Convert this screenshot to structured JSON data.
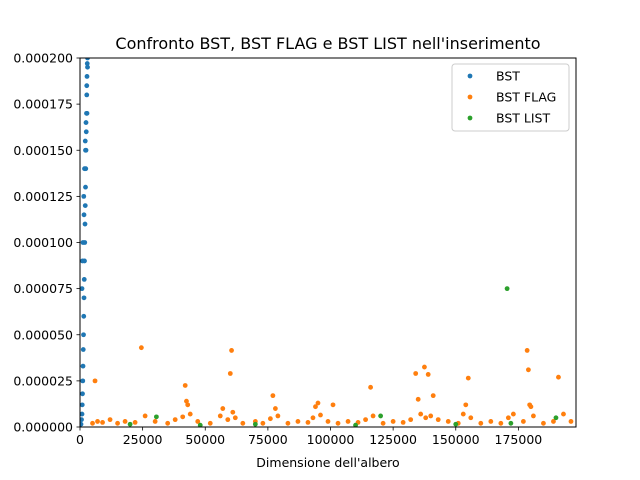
{
  "chart_data": {
    "type": "scatter",
    "title": "Confronto BST, BST FLAG e BST LIST nell'inserimento",
    "xlabel": "Dimensione dell'albero",
    "ylabel": "",
    "xlim": [
      0,
      198000
    ],
    "ylim": [
      0,
      0.0002
    ],
    "x_ticks": [
      {
        "value": 0,
        "label": "0"
      },
      {
        "value": 25000,
        "label": "25000"
      },
      {
        "value": 50000,
        "label": "50000"
      },
      {
        "value": 75000,
        "label": "75000"
      },
      {
        "value": 100000,
        "label": "100000"
      },
      {
        "value": 125000,
        "label": "125000"
      },
      {
        "value": 150000,
        "label": "150000"
      },
      {
        "value": 175000,
        "label": "175000"
      }
    ],
    "y_ticks": [
      {
        "value": 0,
        "label": "0.000000"
      },
      {
        "value": 2.5e-05,
        "label": "0.000025"
      },
      {
        "value": 5e-05,
        "label": "0.000050"
      },
      {
        "value": 7.5e-05,
        "label": "0.000075"
      },
      {
        "value": 0.0001,
        "label": "0.000100"
      },
      {
        "value": 0.000125,
        "label": "0.000125"
      },
      {
        "value": 0.00015,
        "label": "0.000150"
      },
      {
        "value": 0.000175,
        "label": "0.000175"
      },
      {
        "value": 0.0002,
        "label": "0.000200"
      }
    ],
    "grid": false,
    "legend_position": "top-right",
    "series": [
      {
        "name": "BST",
        "color": "#1f77b4",
        "x": [
          400,
          600,
          800,
          900,
          1000,
          1100,
          1200,
          1300,
          1400,
          1500,
          1600,
          1700,
          1800,
          1900,
          2000,
          2100,
          2200,
          2300,
          2400,
          2500,
          2600,
          2700,
          2800,
          2900,
          3000,
          800,
          1200,
          1500,
          1800,
          2100,
          2400,
          2700,
          3000,
          1000,
          1600,
          2200,
          2800
        ],
        "y": [
          1.5e-06,
          4e-06,
          7e-06,
          1.2e-05,
          1.8e-05,
          2.5e-05,
          3.3e-05,
          4.2e-05,
          5e-05,
          6e-05,
          7e-05,
          8e-05,
          9e-05,
          0.0001,
          0.00011,
          0.00012,
          0.00013,
          0.00014,
          0.00015,
          0.00016,
          0.00017,
          0.00018,
          0.00019,
          0.000197,
          0.0002,
          7.5e-05,
          0.0001,
          0.000125,
          0.00014,
          0.000155,
          0.000165,
          0.000185,
          0.000195,
          9e-05,
          0.000115,
          0.00015,
          0.00017
        ]
      },
      {
        "name": "BST FLAG",
        "color": "#ff7f0e",
        "x": [
          6000,
          24500,
          42000,
          42500,
          43000,
          57000,
          60000,
          60500,
          61000,
          77000,
          78000,
          94000,
          95000,
          101000,
          116000,
          134000,
          135000,
          137500,
          139000,
          141000,
          154000,
          155000,
          178500,
          179000,
          179500,
          180000,
          191000,
          5000,
          7000,
          9000,
          12000,
          15000,
          18000,
          22000,
          26000,
          30000,
          35000,
          38000,
          41000,
          44000,
          47000,
          52000,
          56000,
          59000,
          62000,
          65000,
          70000,
          73000,
          76000,
          79000,
          83000,
          87000,
          91000,
          93000,
          96000,
          99000,
          103000,
          107000,
          111000,
          114000,
          117000,
          121000,
          125000,
          129000,
          132000,
          136000,
          138000,
          140000,
          143000,
          147000,
          151000,
          153000,
          156000,
          160000,
          164000,
          168000,
          171000,
          173000,
          177000,
          181000,
          185000,
          189000,
          193000,
          196000
        ],
        "y": [
          2.5e-05,
          4.3e-05,
          2.25e-05,
          1.4e-05,
          1.2e-05,
          1e-05,
          2.9e-05,
          4.15e-05,
          8e-06,
          1.7e-05,
          1e-05,
          1.1e-05,
          1.3e-05,
          1.2e-05,
          2.15e-05,
          2.9e-05,
          1.5e-05,
          3.25e-05,
          2.85e-05,
          1.7e-05,
          1.2e-05,
          2.65e-05,
          4.15e-05,
          3.1e-05,
          1.2e-05,
          1.1e-05,
          2.7e-05,
          2e-06,
          3e-06,
          2.5e-06,
          4e-06,
          2e-06,
          3e-06,
          2.5e-06,
          6e-06,
          3e-06,
          2e-06,
          4e-06,
          5.5e-06,
          7e-06,
          3e-06,
          2e-06,
          6e-06,
          4e-06,
          5e-06,
          2e-06,
          3e-06,
          2e-06,
          4.5e-06,
          6e-06,
          2e-06,
          3e-06,
          2.5e-06,
          5e-06,
          6.5e-06,
          3e-06,
          2e-06,
          3e-06,
          2.5e-06,
          4e-06,
          6e-06,
          2e-06,
          3e-06,
          2.5e-06,
          4e-06,
          7e-06,
          5e-06,
          6e-06,
          4e-06,
          3e-06,
          2e-06,
          7e-06,
          5e-06,
          2e-06,
          3e-06,
          2e-06,
          5e-06,
          7e-06,
          3e-06,
          6e-06,
          2e-06,
          3e-06,
          7e-06,
          3e-06
        ]
      },
      {
        "name": "BST LIST",
        "color": "#2ca02c",
        "x": [
          170500,
          120000,
          30500,
          190000,
          20000,
          48000,
          70000,
          110000,
          150000,
          172000
        ],
        "y": [
          7.5e-05,
          6e-06,
          5.5e-06,
          5e-06,
          1.5e-06,
          1e-06,
          1.5e-06,
          1e-06,
          1.5e-06,
          2e-06
        ]
      }
    ]
  }
}
